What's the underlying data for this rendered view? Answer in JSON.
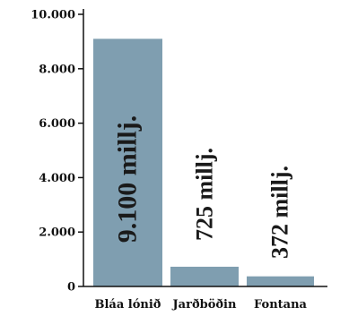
{
  "chart_data": {
    "type": "bar",
    "categories": [
      "Bláa lónið",
      "Jarðböðin",
      "Fontana"
    ],
    "values": [
      9100,
      725,
      372
    ],
    "data_labels": [
      "9.100 millj.",
      "725 millj.",
      "372 millj."
    ],
    "ylim": [
      0,
      10000
    ],
    "yticks": [
      0,
      2000,
      4000,
      6000,
      8000,
      10000
    ],
    "ytick_labels": [
      "0",
      "2.000",
      "4.000",
      "6.000",
      "8.000",
      "10.000"
    ],
    "title": "",
    "xlabel": "",
    "ylabel": "",
    "grid": false,
    "legend": "none",
    "colors": {
      "bar": "#7f9eb0",
      "axis": "#111111",
      "text": "#111111"
    }
  }
}
